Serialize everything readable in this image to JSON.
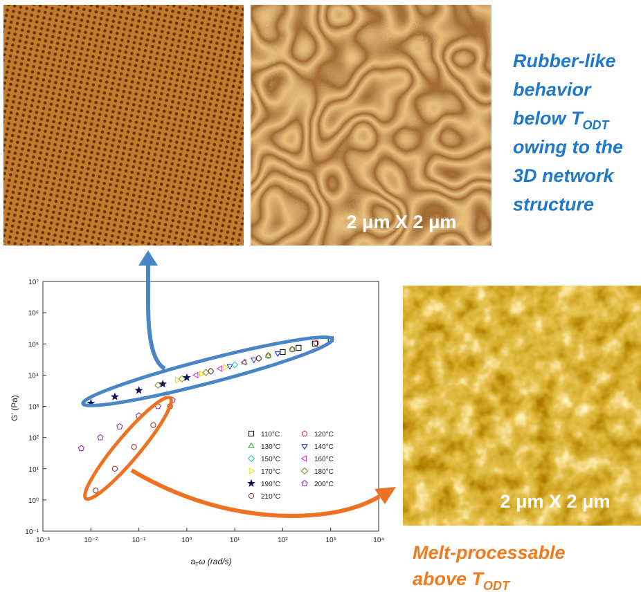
{
  "chart_data": {
    "type": "scatter",
    "x_label_parts": [
      "a",
      "T",
      "ω (rad/s)"
    ],
    "y_label": "G' (Pa)",
    "xscale": "log",
    "yscale": "log",
    "xlim": [
      0.001,
      10000
    ],
    "xticks": [
      {
        "value": 0.001,
        "label": "10⁻³"
      },
      {
        "value": 0.01,
        "label": "10⁻²"
      },
      {
        "value": 0.1,
        "label": "10⁻¹"
      },
      {
        "value": 1,
        "label": "10⁰"
      },
      {
        "value": 10,
        "label": "10¹"
      },
      {
        "value": 100,
        "label": "10²"
      },
      {
        "value": 1000,
        "label": "10³"
      },
      {
        "value": 10000,
        "label": "10⁴"
      }
    ],
    "ylim": [
      0.1,
      10000000
    ],
    "yticks": [
      {
        "value": 0.1,
        "label": "10⁻¹"
      },
      {
        "value": 1,
        "label": "10⁰"
      },
      {
        "value": 10,
        "label": "10¹"
      },
      {
        "value": 100,
        "label": "10²"
      },
      {
        "value": 1000,
        "label": "10³"
      },
      {
        "value": 10000,
        "label": "10⁴"
      },
      {
        "value": 100000,
        "label": "10⁵"
      },
      {
        "value": 1000000,
        "label": "10⁶"
      },
      {
        "value": 10000000,
        "label": "10⁷"
      }
    ],
    "series": [
      {
        "name": "110°C",
        "color": "#000000",
        "marker": "square",
        "x": [
          100,
          214,
          468,
          1000
        ],
        "values": [
          55000,
          75000,
          102000,
          141000
        ]
      },
      {
        "name": "120°C",
        "color": "#e02020",
        "marker": "circle",
        "x": [
          50,
          158,
          501
        ],
        "values": [
          41400,
          66400,
          106000
        ]
      },
      {
        "name": "130°C",
        "color": "#20b020",
        "marker": "triangle",
        "x": [
          15.8,
          50,
          158
        ],
        "values": [
          25800,
          41400,
          66400
        ]
      },
      {
        "name": "140°C",
        "color": "#1030d0",
        "marker": "triangle-down",
        "x": [
          7.9,
          25,
          79
        ],
        "values": [
          19500,
          31200,
          50000
        ]
      },
      {
        "name": "150°C",
        "color": "#20c8d0",
        "marker": "diamond",
        "x": [
          3.16,
          10,
          31.6
        ],
        "values": [
          13300,
          21400,
          34300
        ]
      },
      {
        "name": "160°C",
        "color": "#d020c8",
        "marker": "triangle-left",
        "x": [
          1.58,
          5.01,
          15.8
        ],
        "values": [
          10000,
          16100,
          25800
        ]
      },
      {
        "name": "170°C",
        "color": "#e8d800",
        "marker": "triangle-right",
        "x": [
          0.631,
          2,
          6.31
        ],
        "values": [
          6890,
          11000,
          17700
        ]
      },
      {
        "name": "180°C",
        "color": "#8a8a10",
        "marker": "diamond",
        "x": [
          0.251,
          0.794,
          2.51
        ],
        "values": [
          4720,
          7570,
          12100
        ]
      },
      {
        "name": "190°C",
        "color": "#101060",
        "marker": "star",
        "x": [
          0.01,
          0.0316,
          0.1,
          0.316,
          1
        ],
        "values": [
          1260,
          2020,
          3240,
          5190,
          8320
        ]
      },
      {
        "name": "200°C",
        "color": "#8020b0",
        "marker": "pentagon",
        "x": [
          0.0063,
          0.0158,
          0.0398,
          0.1,
          0.251,
          0.501
        ],
        "values": [
          45,
          100,
          224,
          500,
          1000,
          1580
        ]
      },
      {
        "name": "210°C",
        "color": "#a02010",
        "marker": "circle",
        "x": [
          0.0126,
          0.0316,
          0.0794,
          0.2,
          0.447,
          3.16,
          31.6
        ],
        "values": [
          2,
          10,
          50,
          250,
          1000,
          13300,
          34300
        ]
      }
    ]
  },
  "annotations": {
    "rubber_lines": [
      "Rubber-like",
      "behavior",
      "below T",
      "owing to the",
      "3D network",
      "structure"
    ],
    "rubber_sub": "ODT",
    "scale_bar_top": "2 μm X 2 μm",
    "scale_bar_bottom": "2 μm X 2 μm",
    "melt_lines": [
      "Melt-processable",
      "above T"
    ],
    "melt_sub": "ODT"
  }
}
